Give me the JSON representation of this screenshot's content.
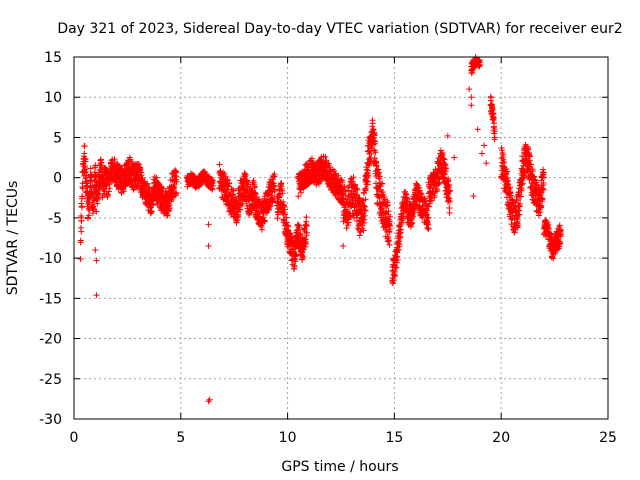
{
  "chart_data": {
    "type": "scatter",
    "title": "Day 321 of 2023, Sidereal Day-to-day VTEC variation (SDTVAR) for receiver eur2",
    "xlabel": "GPS time / hours",
    "ylabel": "SDTVAR / TECUs",
    "xlim": [
      0,
      25
    ],
    "ylim": [
      -30,
      15
    ],
    "xticks": [
      0,
      5,
      10,
      15,
      20,
      25
    ],
    "yticks": [
      -30,
      -25,
      -20,
      -15,
      -10,
      -5,
      0,
      5,
      10,
      15
    ],
    "grid": true,
    "marker": "+",
    "colors": {
      "series": "#ff0000",
      "grid": "#a0a0a0",
      "axes": "#000000"
    },
    "series": [
      {
        "name": "SDTVAR",
        "segments": [
          {
            "x": [
              0.3,
              0.32,
              0.35,
              0.38,
              0.4,
              0.42,
              0.45,
              0.5,
              0.55,
              0.6,
              0.65,
              0.7,
              0.75,
              0.8,
              0.85,
              0.9,
              0.95,
              1.0,
              1.05,
              1.1,
              1.15,
              1.2,
              1.25,
              1.3,
              1.35,
              1.4
            ],
            "y": [
              -9,
              -7,
              -5,
              -3,
              -1,
              0.5,
              1.5,
              2.5,
              0,
              -2,
              -4,
              -3,
              -1,
              0,
              -2,
              -3,
              -1,
              0,
              -1,
              -2,
              -1,
              0,
              1,
              0,
              -1,
              -2
            ],
            "spread": 1.8
          },
          {
            "x": [
              1.4,
              1.6,
              1.8,
              2.0,
              2.2,
              2.4,
              2.6,
              2.8,
              3.0,
              3.2,
              3.4,
              3.6,
              3.8,
              4.0,
              4.2,
              4.4,
              4.6,
              4.8
            ],
            "y": [
              0,
              -1,
              1,
              0.5,
              -0.5,
              0,
              1,
              0,
              0.5,
              -1,
              -2,
              -3,
              -1,
              -2.5,
              -3,
              -3.5,
              -1,
              -0.5
            ],
            "spread": 1.6
          },
          {
            "x": [
              5.3,
              5.5,
              5.7,
              5.9,
              6.1,
              6.3,
              6.5
            ],
            "y": [
              -0.5,
              0,
              -0.8,
              -0.3,
              0.2,
              -0.5,
              -1
            ],
            "spread": 0.7
          },
          {
            "x": [
              6.8,
              7.0,
              7.2,
              7.4,
              7.6,
              7.8,
              8.0,
              8.2,
              8.4,
              8.6,
              8.8,
              9.0,
              9.2,
              9.4
            ],
            "y": [
              0,
              -1,
              -2,
              -3,
              -4,
              -2,
              -1,
              -3,
              -2,
              -4,
              -5,
              -3,
              -2,
              -1
            ],
            "spread": 1.8
          },
          {
            "x": [
              9.5,
              9.7,
              9.9,
              10.1,
              10.3,
              10.5,
              10.7,
              10.9
            ],
            "y": [
              -4,
              -2,
              -6,
              -8,
              -10,
              -7,
              -9,
              -6
            ],
            "spread": 1.5
          },
          {
            "x": [
              10.5,
              10.8,
              11.1,
              11.4,
              11.7,
              12.0,
              12.3,
              12.6
            ],
            "y": [
              -1,
              0,
              1,
              0.5,
              1.5,
              0,
              -1,
              -2
            ],
            "spread": 1.5
          },
          {
            "x": [
              12.6,
              12.8,
              13.0,
              13.2,
              13.4,
              13.6,
              13.8,
              14.0,
              14.2,
              14.4,
              14.6,
              14.8
            ],
            "y": [
              -3,
              -4,
              -2,
              -3,
              -5,
              -4,
              3,
              5,
              -1,
              -3,
              -5,
              -6
            ],
            "spread": 2.5
          },
          {
            "x": [
              14.9,
              15.0,
              15.1,
              15.2,
              15.3,
              15.4,
              15.5,
              15.6,
              15.8,
              16.0,
              16.2,
              16.4,
              16.6
            ],
            "y": [
              -12,
              -11,
              -10,
              -8,
              -6,
              -4,
              -3,
              -4,
              -5,
              -2,
              -3,
              -4,
              -5
            ],
            "spread": 1.5
          },
          {
            "x": [
              16.6,
              16.8,
              17.0,
              17.2,
              17.4,
              17.6
            ],
            "y": [
              -2,
              -1,
              0,
              2,
              0,
              -3
            ],
            "spread": 1.8
          },
          {
            "x": [
              18.6,
              18.7,
              18.8,
              18.9,
              19.0
            ],
            "y": [
              13.5,
              14,
              14.5,
              14.8,
              14
            ],
            "spread": 0.6
          },
          {
            "x": [
              19.5,
              19.6,
              19.7
            ],
            "y": [
              9.5,
              8,
              5
            ],
            "spread": 1.0
          },
          {
            "x": [
              20.0,
              20.2,
              20.4,
              20.6,
              20.8,
              21.0,
              21.2,
              21.4,
              21.6,
              21.8,
              22.0
            ],
            "y": [
              2,
              0,
              -3,
              -5,
              -4,
              1,
              3,
              0,
              -2,
              -3,
              0
            ],
            "spread": 2.0
          },
          {
            "x": [
              22.0,
              22.2,
              22.4,
              22.6,
              22.8
            ],
            "y": [
              -6,
              -7,
              -9,
              -8,
              -7
            ],
            "spread": 1.4
          }
        ],
        "isolated": [
          {
            "x": 1.05,
            "y": -14.6
          },
          {
            "x": 1.05,
            "y": -10.3
          },
          {
            "x": 1.0,
            "y": -9.0
          },
          {
            "x": 1.05,
            "y": -4.2
          },
          {
            "x": 6.3,
            "y": -27.8
          },
          {
            "x": 6.35,
            "y": -27.6
          },
          {
            "x": 6.3,
            "y": -8.5
          },
          {
            "x": 6.3,
            "y": -5.8
          },
          {
            "x": 12.6,
            "y": -8.5
          },
          {
            "x": 12.7,
            "y": -5.0
          },
          {
            "x": 17.5,
            "y": 5.2
          },
          {
            "x": 17.8,
            "y": 2.5
          },
          {
            "x": 18.5,
            "y": 11.0
          },
          {
            "x": 18.6,
            "y": 10.0
          },
          {
            "x": 18.6,
            "y": 9.0
          },
          {
            "x": 18.7,
            "y": -2.3
          },
          {
            "x": 18.9,
            "y": 6.0
          },
          {
            "x": 19.1,
            "y": 3.0
          },
          {
            "x": 19.3,
            "y": 1.8
          },
          {
            "x": 19.2,
            "y": 4.0
          }
        ]
      }
    ]
  }
}
